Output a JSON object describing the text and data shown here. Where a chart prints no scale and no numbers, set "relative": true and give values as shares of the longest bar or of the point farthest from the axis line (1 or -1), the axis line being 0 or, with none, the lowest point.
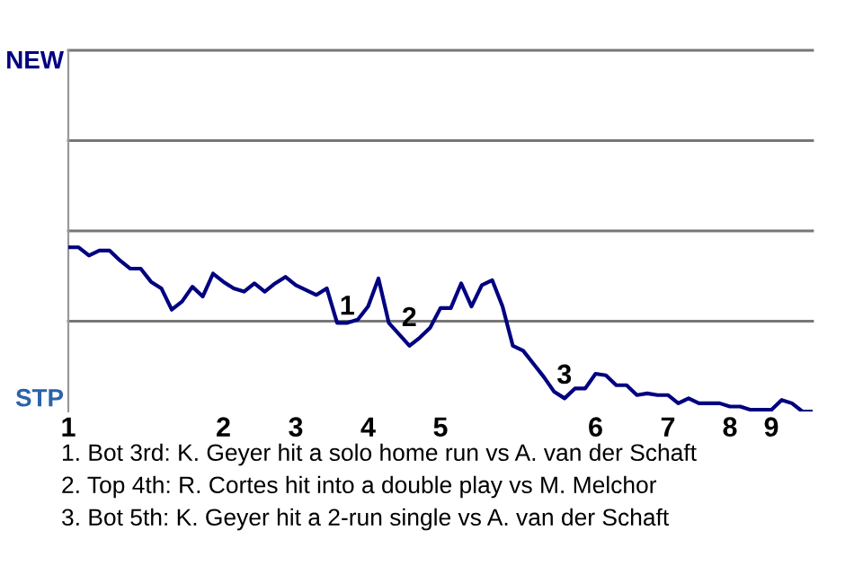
{
  "chart_data": {
    "type": "line",
    "relative": true,
    "categories": [
      "1",
      null,
      null,
      null,
      null,
      null,
      null,
      null,
      null,
      null,
      null,
      null,
      null,
      null,
      null,
      "2",
      null,
      null,
      null,
      null,
      null,
      null,
      "3",
      null,
      null,
      null,
      null,
      null,
      null,
      "4",
      null,
      null,
      null,
      null,
      null,
      null,
      "5",
      null,
      null,
      null,
      null,
      null,
      null,
      null,
      null,
      null,
      null,
      null,
      null,
      null,
      null,
      "6",
      null,
      null,
      null,
      null,
      null,
      null,
      "7",
      null,
      null,
      null,
      null,
      null,
      "8",
      null,
      null,
      null,
      "9",
      null,
      null,
      null,
      null
    ],
    "series": [
      {
        "color": "#000080",
        "values": [
          1,
          1,
          0.95,
          0.98,
          0.98,
          0.92,
          0.87,
          0.87,
          0.79,
          0.75,
          0.62,
          0.67,
          0.76,
          0.7,
          0.84,
          0.79,
          0.75,
          0.73,
          0.78,
          0.73,
          0.78,
          0.82,
          0.77,
          0.74,
          0.71,
          0.75,
          0.54,
          0.54,
          0.56,
          0.64,
          0.81,
          0.54,
          0.47,
          0.4,
          0.45,
          0.51,
          0.63,
          0.63,
          0.78,
          0.64,
          0.77,
          0.8,
          0.64,
          0.4,
          0.37,
          0.29,
          0.21,
          0.12,
          0.08,
          0.14,
          0.14,
          0.23,
          0.22,
          0.16,
          0.16,
          0.1,
          0.11,
          0.1,
          0.1,
          0.05,
          0.08,
          0.05,
          0.05,
          0.05,
          0.03,
          0.03,
          0.01,
          0.01,
          0.01,
          0.07,
          0.05,
          0,
          0
        ],
        "marker": "none"
      }
    ],
    "ref_lines": [
      {
        "axis": "y",
        "value": 0.55,
        "color": "#777777"
      },
      {
        "axis": "y",
        "value": 1.1,
        "color": "#777777"
      },
      {
        "axis": "y",
        "value": 1.65,
        "color": "#777777"
      },
      {
        "axis": "y",
        "value": 2.2,
        "color": "#777777"
      }
    ],
    "annotations": [
      "NEW",
      "STP",
      {
        "text": "1",
        "y": 0.54
      },
      {
        "text": "2",
        "y": 0.47
      },
      {
        "text": "3",
        "y": 0.12
      },
      "1. Bot 3rd: K. Geyer hit a solo home run vs A. van der Schaft",
      "2. Top 4th: R. Cortes hit into a double play vs M. Melchor",
      "3. Bot 5th: K. Geyer hit a 2-run single vs A. van der Schaft"
    ]
  }
}
